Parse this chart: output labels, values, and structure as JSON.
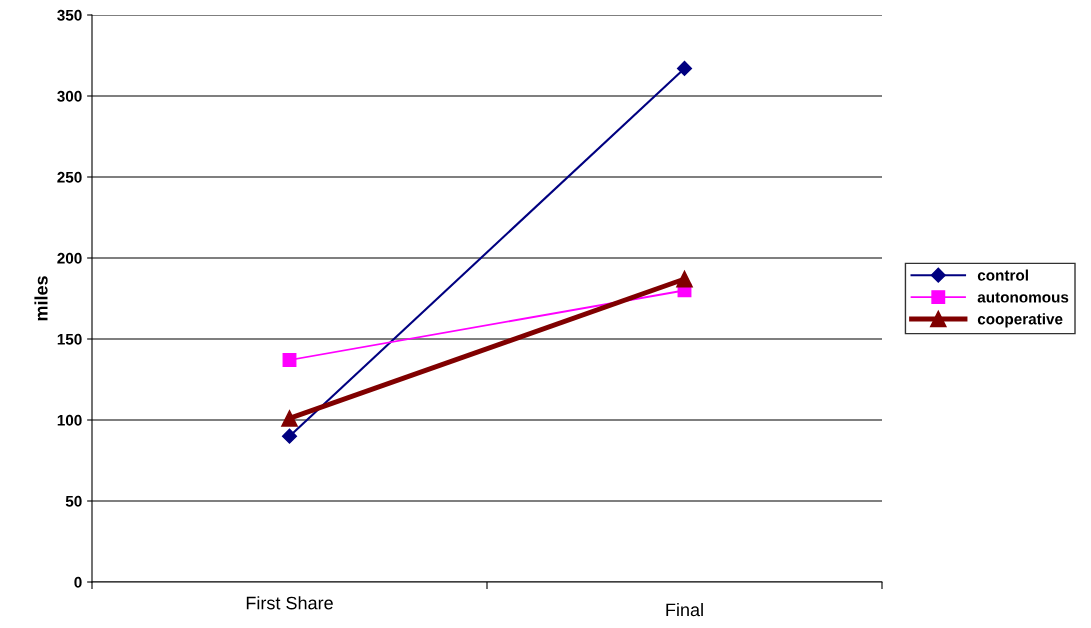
{
  "chart_data": {
    "type": "line",
    "ylabel": "miles",
    "categories": [
      "First Share",
      "Final"
    ],
    "series": [
      {
        "name": "control",
        "color": "#000080",
        "marker": "diamond",
        "values": [
          90,
          317
        ]
      },
      {
        "name": "autonomous",
        "color": "#ff00ff",
        "marker": "square",
        "values": [
          137,
          180
        ]
      },
      {
        "name": "cooperative",
        "color": "#800000",
        "marker": "triangle",
        "values": [
          101,
          187
        ]
      }
    ],
    "ylim": [
      0,
      350
    ],
    "yticks": [
      0,
      50,
      100,
      150,
      200,
      250,
      300,
      350
    ],
    "grid": "y",
    "legend": "right"
  }
}
